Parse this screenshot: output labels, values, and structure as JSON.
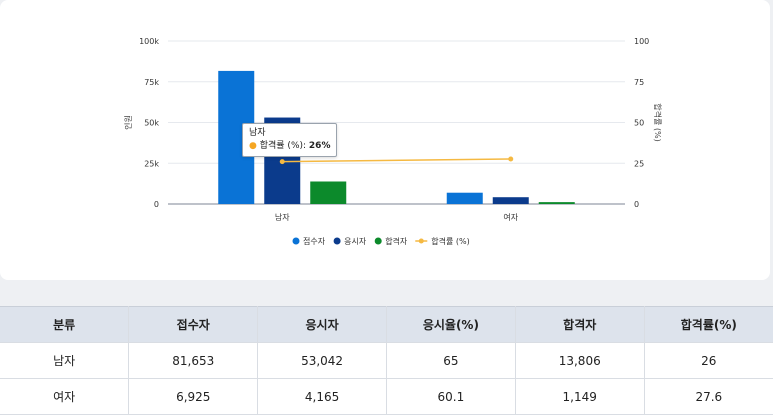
{
  "chart_data": {
    "type": "bar",
    "categories": [
      "남자",
      "여자"
    ],
    "series": [
      {
        "name": "접수자",
        "type": "bar",
        "axis": "left",
        "color": "#0a73d6",
        "values": [
          81653,
          6925
        ]
      },
      {
        "name": "응시자",
        "type": "bar",
        "axis": "left",
        "color": "#0b3b8c",
        "values": [
          53042,
          4165
        ]
      },
      {
        "name": "합격자",
        "type": "bar",
        "axis": "left",
        "color": "#0c8a2b",
        "values": [
          13806,
          1149
        ]
      },
      {
        "name": "합격률 (%)",
        "type": "line",
        "axis": "right",
        "color": "#f5b942",
        "values": [
          26,
          27.6
        ]
      }
    ],
    "ylabel": "인원",
    "y2label": "합격률 (%)",
    "ylim": [
      0,
      100000
    ],
    "y2lim": [
      0,
      100
    ],
    "yticks": [
      "0",
      "25k",
      "50k",
      "75k",
      "100k"
    ],
    "y2ticks": [
      "0",
      "25",
      "50",
      "75",
      "100"
    ],
    "grid": true,
    "legend_position": "bottom"
  },
  "tooltip": {
    "category": "남자",
    "series": "합격률 (%)",
    "value": "26%"
  },
  "table": {
    "headers": [
      "분류",
      "접수자",
      "응시자",
      "응시율(%)",
      "합격자",
      "합격률(%)"
    ],
    "rows": [
      [
        "남자",
        "81,653",
        "53,042",
        "65",
        "13,806",
        "26"
      ],
      [
        "여자",
        "6,925",
        "4,165",
        "60.1",
        "1,149",
        "27.6"
      ]
    ]
  }
}
